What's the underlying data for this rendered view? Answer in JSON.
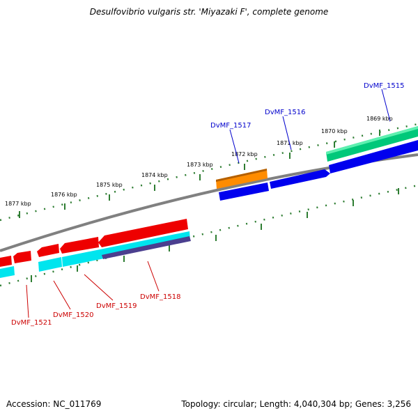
{
  "title": "Desulfovibrio vulgaris str. 'Miyazaki F', complete genome",
  "footer": {
    "accession": "Accession: NC_011769",
    "summary": "Topology: circular; Length: 4,040,304 bp; Genes: 3,256"
  },
  "kbp_labels": [
    "1877 kbp",
    "1876 kbp",
    "1875 kbp",
    "1874 kbp",
    "1873 kbp",
    "1872 kbp",
    "1871 kbp",
    "1870 kbp",
    "1869 kbp"
  ],
  "genes_forward": [
    "DvMF_1517",
    "DvMF_1516",
    "DvMF_1515"
  ],
  "genes_reverse": [
    "DvMF_1521",
    "DvMF_1520",
    "DvMF_1519",
    "DvMF_1518"
  ],
  "colors": {
    "forward_label": "#0000cc",
    "reverse_label": "#cc0000",
    "backbone": "#808080",
    "tick": "#2e7d32",
    "orange": "#ff8c00",
    "blue": "#0000ee",
    "teal": "#00c87a",
    "red": "#ee0000",
    "cyan": "#00e5ee",
    "purple": "#4b3f8f"
  }
}
